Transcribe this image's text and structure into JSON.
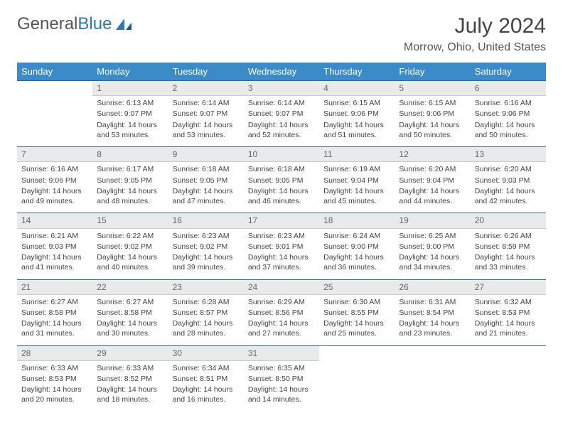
{
  "logo": {
    "text1": "General",
    "text2": "Blue"
  },
  "title": "July 2024",
  "location": "Morrow, Ohio, United States",
  "colors": {
    "header_bg": "#3b8bc9",
    "header_text": "#ffffff",
    "daynum_bg": "#e9eaeb",
    "border_top": "#2a6a9a",
    "logo_blue": "#2a7ab9"
  },
  "weekdays": [
    "Sunday",
    "Monday",
    "Tuesday",
    "Wednesday",
    "Thursday",
    "Friday",
    "Saturday"
  ],
  "weeks": [
    [
      null,
      {
        "n": "1",
        "sr": "Sunrise: 6:13 AM",
        "ss": "Sunset: 9:07 PM",
        "dl": "Daylight: 14 hours and 53 minutes."
      },
      {
        "n": "2",
        "sr": "Sunrise: 6:14 AM",
        "ss": "Sunset: 9:07 PM",
        "dl": "Daylight: 14 hours and 53 minutes."
      },
      {
        "n": "3",
        "sr": "Sunrise: 6:14 AM",
        "ss": "Sunset: 9:07 PM",
        "dl": "Daylight: 14 hours and 52 minutes."
      },
      {
        "n": "4",
        "sr": "Sunrise: 6:15 AM",
        "ss": "Sunset: 9:06 PM",
        "dl": "Daylight: 14 hours and 51 minutes."
      },
      {
        "n": "5",
        "sr": "Sunrise: 6:15 AM",
        "ss": "Sunset: 9:06 PM",
        "dl": "Daylight: 14 hours and 50 minutes."
      },
      {
        "n": "6",
        "sr": "Sunrise: 6:16 AM",
        "ss": "Sunset: 9:06 PM",
        "dl": "Daylight: 14 hours and 50 minutes."
      }
    ],
    [
      {
        "n": "7",
        "sr": "Sunrise: 6:16 AM",
        "ss": "Sunset: 9:06 PM",
        "dl": "Daylight: 14 hours and 49 minutes."
      },
      {
        "n": "8",
        "sr": "Sunrise: 6:17 AM",
        "ss": "Sunset: 9:05 PM",
        "dl": "Daylight: 14 hours and 48 minutes."
      },
      {
        "n": "9",
        "sr": "Sunrise: 6:18 AM",
        "ss": "Sunset: 9:05 PM",
        "dl": "Daylight: 14 hours and 47 minutes."
      },
      {
        "n": "10",
        "sr": "Sunrise: 6:18 AM",
        "ss": "Sunset: 9:05 PM",
        "dl": "Daylight: 14 hours and 46 minutes."
      },
      {
        "n": "11",
        "sr": "Sunrise: 6:19 AM",
        "ss": "Sunset: 9:04 PM",
        "dl": "Daylight: 14 hours and 45 minutes."
      },
      {
        "n": "12",
        "sr": "Sunrise: 6:20 AM",
        "ss": "Sunset: 9:04 PM",
        "dl": "Daylight: 14 hours and 44 minutes."
      },
      {
        "n": "13",
        "sr": "Sunrise: 6:20 AM",
        "ss": "Sunset: 9:03 PM",
        "dl": "Daylight: 14 hours and 42 minutes."
      }
    ],
    [
      {
        "n": "14",
        "sr": "Sunrise: 6:21 AM",
        "ss": "Sunset: 9:03 PM",
        "dl": "Daylight: 14 hours and 41 minutes."
      },
      {
        "n": "15",
        "sr": "Sunrise: 6:22 AM",
        "ss": "Sunset: 9:02 PM",
        "dl": "Daylight: 14 hours and 40 minutes."
      },
      {
        "n": "16",
        "sr": "Sunrise: 6:23 AM",
        "ss": "Sunset: 9:02 PM",
        "dl": "Daylight: 14 hours and 39 minutes."
      },
      {
        "n": "17",
        "sr": "Sunrise: 6:23 AM",
        "ss": "Sunset: 9:01 PM",
        "dl": "Daylight: 14 hours and 37 minutes."
      },
      {
        "n": "18",
        "sr": "Sunrise: 6:24 AM",
        "ss": "Sunset: 9:00 PM",
        "dl": "Daylight: 14 hours and 36 minutes."
      },
      {
        "n": "19",
        "sr": "Sunrise: 6:25 AM",
        "ss": "Sunset: 9:00 PM",
        "dl": "Daylight: 14 hours and 34 minutes."
      },
      {
        "n": "20",
        "sr": "Sunrise: 6:26 AM",
        "ss": "Sunset: 8:59 PM",
        "dl": "Daylight: 14 hours and 33 minutes."
      }
    ],
    [
      {
        "n": "21",
        "sr": "Sunrise: 6:27 AM",
        "ss": "Sunset: 8:58 PM",
        "dl": "Daylight: 14 hours and 31 minutes."
      },
      {
        "n": "22",
        "sr": "Sunrise: 6:27 AM",
        "ss": "Sunset: 8:58 PM",
        "dl": "Daylight: 14 hours and 30 minutes."
      },
      {
        "n": "23",
        "sr": "Sunrise: 6:28 AM",
        "ss": "Sunset: 8:57 PM",
        "dl": "Daylight: 14 hours and 28 minutes."
      },
      {
        "n": "24",
        "sr": "Sunrise: 6:29 AM",
        "ss": "Sunset: 8:56 PM",
        "dl": "Daylight: 14 hours and 27 minutes."
      },
      {
        "n": "25",
        "sr": "Sunrise: 6:30 AM",
        "ss": "Sunset: 8:55 PM",
        "dl": "Daylight: 14 hours and 25 minutes."
      },
      {
        "n": "26",
        "sr": "Sunrise: 6:31 AM",
        "ss": "Sunset: 8:54 PM",
        "dl": "Daylight: 14 hours and 23 minutes."
      },
      {
        "n": "27",
        "sr": "Sunrise: 6:32 AM",
        "ss": "Sunset: 8:53 PM",
        "dl": "Daylight: 14 hours and 21 minutes."
      }
    ],
    [
      {
        "n": "28",
        "sr": "Sunrise: 6:33 AM",
        "ss": "Sunset: 8:53 PM",
        "dl": "Daylight: 14 hours and 20 minutes."
      },
      {
        "n": "29",
        "sr": "Sunrise: 6:33 AM",
        "ss": "Sunset: 8:52 PM",
        "dl": "Daylight: 14 hours and 18 minutes."
      },
      {
        "n": "30",
        "sr": "Sunrise: 6:34 AM",
        "ss": "Sunset: 8:51 PM",
        "dl": "Daylight: 14 hours and 16 minutes."
      },
      {
        "n": "31",
        "sr": "Sunrise: 6:35 AM",
        "ss": "Sunset: 8:50 PM",
        "dl": "Daylight: 14 hours and 14 minutes."
      },
      null,
      null,
      null
    ]
  ]
}
